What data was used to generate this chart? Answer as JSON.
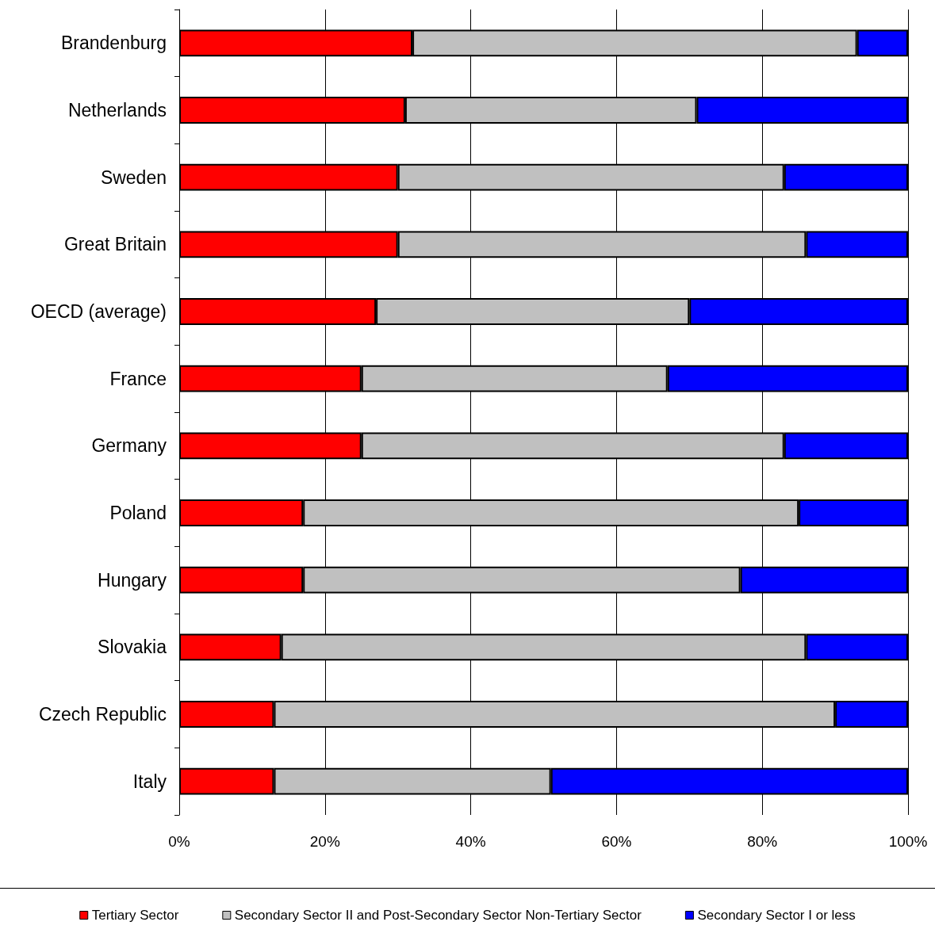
{
  "chart_data": {
    "type": "bar",
    "orientation": "horizontal",
    "stacked": true,
    "categories": [
      "Brandenburg",
      "Netherlands",
      "Sweden",
      "Great Britain",
      "OECD (average)",
      "France",
      "Germany",
      "Poland",
      "Hungary",
      "Slovakia",
      "Czech Republic",
      "Italy"
    ],
    "series": [
      {
        "name": "Tertiary Sector",
        "color": "#ff0000",
        "values": [
          32,
          31,
          30,
          30,
          27,
          25,
          25,
          17,
          17,
          14,
          13,
          13
        ]
      },
      {
        "name": "Secondary Sector II and Post-Secondary Sector Non-Tertiary Sector",
        "color": "#c0c0c0",
        "values": [
          61,
          40,
          53,
          56,
          43,
          42,
          58,
          68,
          60,
          72,
          77,
          38
        ]
      },
      {
        "name": "Secondary Sector I or less",
        "color": "#0000ff",
        "values": [
          7,
          29,
          17,
          14,
          30,
          33,
          17,
          15,
          23,
          14,
          10,
          49
        ]
      }
    ],
    "xlim": [
      0,
      100
    ],
    "xticks": [
      {
        "value": 0,
        "label": "0%"
      },
      {
        "value": 20,
        "label": "20%"
      },
      {
        "value": 40,
        "label": "40%"
      },
      {
        "value": 60,
        "label": "60%"
      },
      {
        "value": 80,
        "label": "80%"
      },
      {
        "value": 100,
        "label": "100%"
      }
    ],
    "grid": "x",
    "legend": "bottom"
  }
}
